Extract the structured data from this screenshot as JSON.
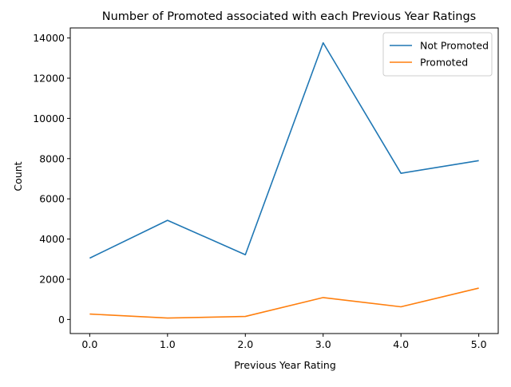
{
  "chart_data": {
    "type": "line",
    "title": "Number of Promoted associated with each Previous Year Ratings",
    "xlabel": "Previous Year Rating",
    "ylabel": "Count",
    "x": [
      0.0,
      1.0,
      2.0,
      3.0,
      4.0,
      5.0
    ],
    "x_tick_labels": [
      "0.0",
      "1.0",
      "2.0",
      "3.0",
      "4.0",
      "5.0"
    ],
    "y_ticks": [
      0,
      2000,
      4000,
      6000,
      8000,
      10000,
      12000,
      14000
    ],
    "y_tick_labels": [
      "0",
      "2000",
      "4000",
      "6000",
      "8000",
      "10000",
      "12000",
      "14000"
    ],
    "xlim": [
      -0.25,
      5.25
    ],
    "ylim": [
      -700,
      14500
    ],
    "grid": false,
    "legend_position": "top-right",
    "series": [
      {
        "name": "Not Promoted",
        "color": "#1f77b4",
        "values": [
          3050,
          4930,
          3220,
          13760,
          7270,
          7900
        ]
      },
      {
        "name": "Promoted",
        "color": "#ff7f0e",
        "values": [
          270,
          70,
          150,
          1090,
          630,
          1560
        ]
      }
    ]
  }
}
